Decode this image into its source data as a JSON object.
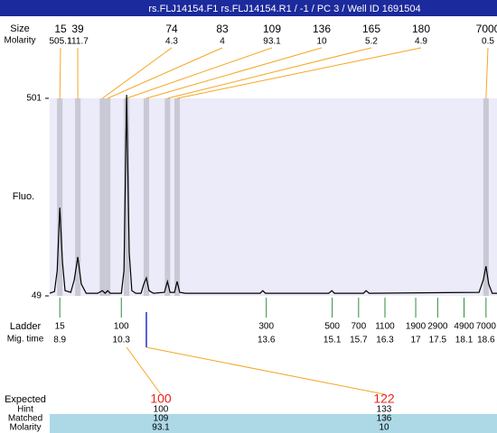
{
  "chart_data": {
    "type": "electropherogram",
    "title": "rs.FLJ14154.F1  rs.FLJ14154.R1  / -1  / PC 3 / Well ID 1691504",
    "y_label": "Fluo.",
    "ylim": [
      49,
      501
    ],
    "yticks": [
      49,
      501
    ],
    "xlim": [
      8.67,
      18.85
    ],
    "trace": {
      "color": "#000000",
      "x": [
        8.67,
        8.78,
        8.84,
        8.9,
        8.96,
        9.02,
        9.15,
        9.23,
        9.31,
        9.39,
        9.5,
        9.76,
        9.87,
        9.93,
        9.99,
        10.05,
        10.3,
        10.36,
        10.42,
        10.48,
        10.54,
        10.63,
        10.75,
        10.81,
        10.87,
        10.93,
        11.03,
        11.28,
        11.35,
        11.41,
        11.51,
        11.57,
        11.63,
        11.76,
        13.46,
        13.52,
        13.58,
        15.02,
        15.09,
        15.15,
        15.81,
        15.87,
        15.94,
        18.44,
        18.54,
        18.6,
        18.66,
        18.74,
        18.85
      ],
      "values": [
        55,
        59,
        107,
        251,
        127,
        61,
        57,
        86,
        138,
        76,
        55,
        55,
        61,
        55,
        61,
        55,
        55,
        107,
        509,
        148,
        61,
        55,
        55,
        76,
        90,
        61,
        55,
        57,
        82,
        57,
        57,
        82,
        57,
        55,
        55,
        61,
        55,
        55,
        61,
        55,
        55,
        61,
        55,
        57,
        86,
        117,
        76,
        55,
        55
      ]
    },
    "peaks": {
      "size_label": "Size",
      "molarity_label": "Molarity",
      "sizes": [
        15,
        39,
        74,
        83,
        109,
        136,
        165,
        180,
        7000
      ],
      "molarity": [
        505.1,
        111.7,
        4.3,
        4,
        93.1,
        10,
        5.2,
        4.9,
        0.5
      ],
      "times": [
        8.9,
        9.31,
        9.87,
        9.99,
        10.42,
        10.87,
        11.35,
        11.57,
        18.6
      ]
    },
    "ladder": {
      "label": "Ladder",
      "time_label": "Mig. time",
      "sizes": [
        15,
        100,
        300,
        500,
        700,
        1100,
        1900,
        2900,
        4900,
        7000
      ],
      "times": [
        8.9,
        10.3,
        13.6,
        15.1,
        15.7,
        16.3,
        17,
        17.5,
        18.1,
        18.6
      ]
    },
    "expected": {
      "label": "Expected",
      "values": [
        100,
        122
      ],
      "hint_label": "Hint",
      "hint": [
        100,
        133
      ],
      "matched_label": "Matched",
      "matched": [
        109,
        136
      ],
      "molarity_label": "Molarity",
      "molarity": [
        93.1,
        10
      ]
    }
  }
}
